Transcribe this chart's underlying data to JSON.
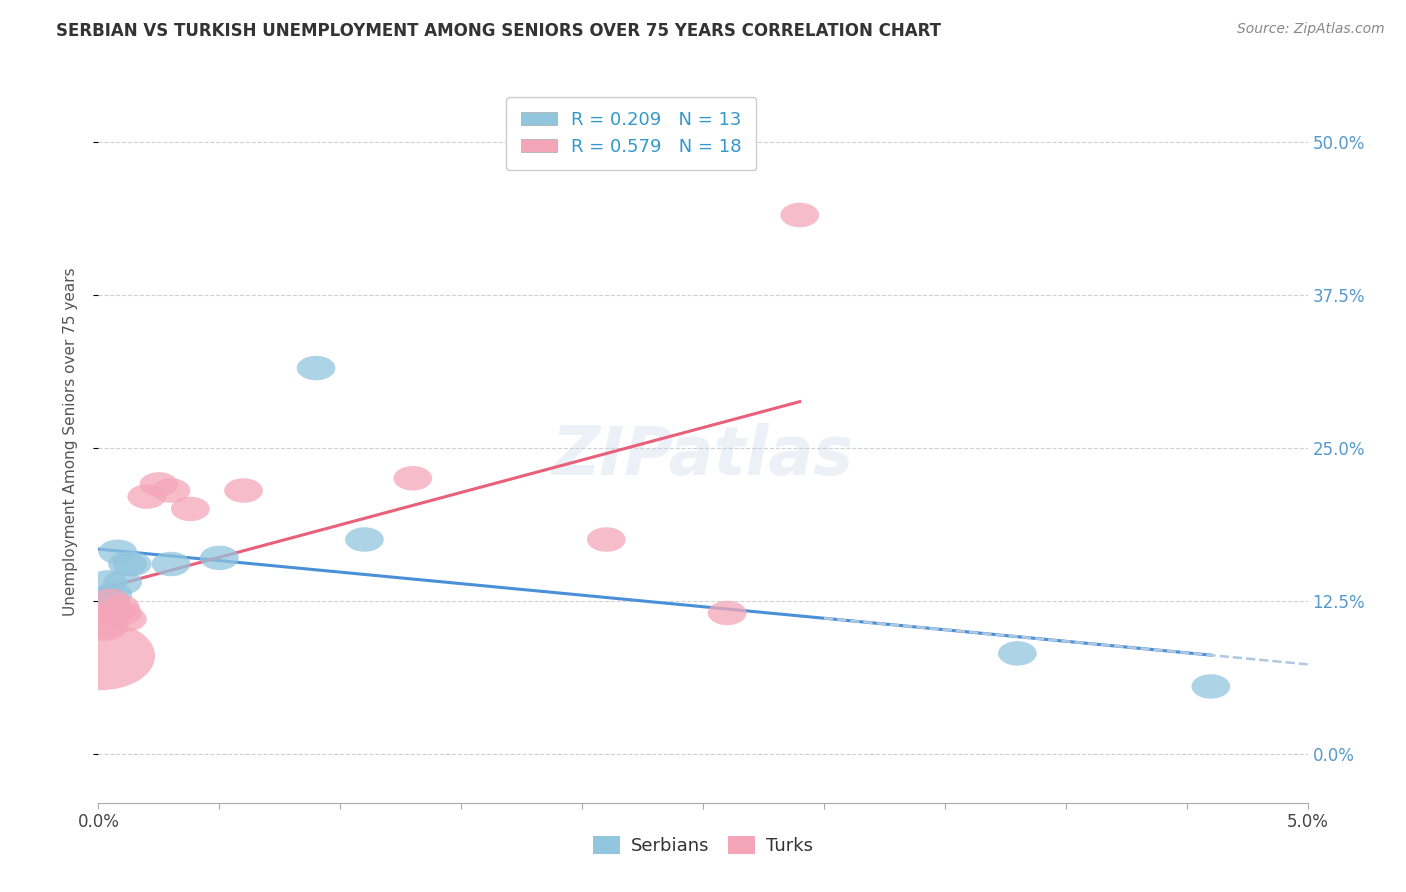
{
  "title": "SERBIAN VS TURKISH UNEMPLOYMENT AMONG SENIORS OVER 75 YEARS CORRELATION CHART",
  "source": "Source: ZipAtlas.com",
  "ylabel": "Unemployment Among Seniors over 75 years",
  "xlim": [
    0.0,
    0.05
  ],
  "ylim": [
    -0.04,
    0.55
  ],
  "yticks": [
    0.0,
    0.125,
    0.25,
    0.375,
    0.5
  ],
  "ytick_labels": [
    "0.0%",
    "12.5%",
    "25.0%",
    "37.5%",
    "50.0%"
  ],
  "xticks": [
    0.0,
    0.005,
    0.01,
    0.015,
    0.02,
    0.025,
    0.03,
    0.035,
    0.04,
    0.045,
    0.05
  ],
  "xtick_labels_show": [
    0.0,
    0.05
  ],
  "serbian_x": [
    0.0002,
    0.0004,
    0.0006,
    0.0008,
    0.001,
    0.0012,
    0.0014,
    0.003,
    0.005,
    0.009,
    0.011,
    0.038,
    0.046
  ],
  "serbian_y": [
    0.125,
    0.14,
    0.13,
    0.165,
    0.14,
    0.155,
    0.155,
    0.155,
    0.16,
    0.315,
    0.175,
    0.082,
    0.055
  ],
  "turkish_x": [
    0.0001,
    0.0002,
    0.0004,
    0.0005,
    0.0006,
    0.0007,
    0.0009,
    0.001,
    0.0012,
    0.002,
    0.0025,
    0.003,
    0.0038,
    0.006,
    0.013,
    0.021,
    0.026,
    0.029
  ],
  "turkish_y": [
    0.08,
    0.105,
    0.105,
    0.125,
    0.115,
    0.115,
    0.12,
    0.115,
    0.11,
    0.21,
    0.22,
    0.215,
    0.2,
    0.215,
    0.225,
    0.175,
    0.115,
    0.44
  ],
  "serbian_color": "#92c5de",
  "turkish_color": "#f4a6b8",
  "serbian_line_color": "#4a90d9",
  "serbian_line_dash_color": "#b0c8e0",
  "turkish_line_color": "#e8607a",
  "serbian_R": 0.209,
  "serbian_N": 13,
  "turkish_R": 0.579,
  "turkish_N": 18,
  "background_color": "#ffffff",
  "grid_color": "#d0d0d0"
}
